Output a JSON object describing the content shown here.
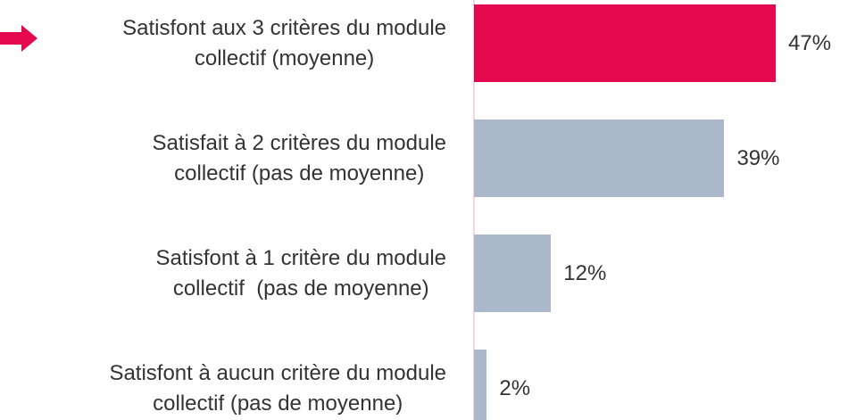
{
  "chart_data": {
    "type": "bar",
    "orientation": "horizontal",
    "categories": [
      "Satisfont aux 3 critères du module\ncollectif (moyenne)",
      "Satisfait à 2 critères du module\ncollectif (pas de moyenne)",
      "Satisfont à 1 critère du module\ncollectif  (pas de moyenne)",
      "Satisfont à aucun critère du module\ncollectif (pas de moyenne)"
    ],
    "values": [
      47,
      39,
      12,
      2
    ],
    "value_labels": [
      "47%",
      "39%",
      "12%",
      "2%"
    ],
    "colors": [
      "#e4084f",
      "#aab8ca",
      "#aab8ca",
      "#aab8ca"
    ]
  }
}
